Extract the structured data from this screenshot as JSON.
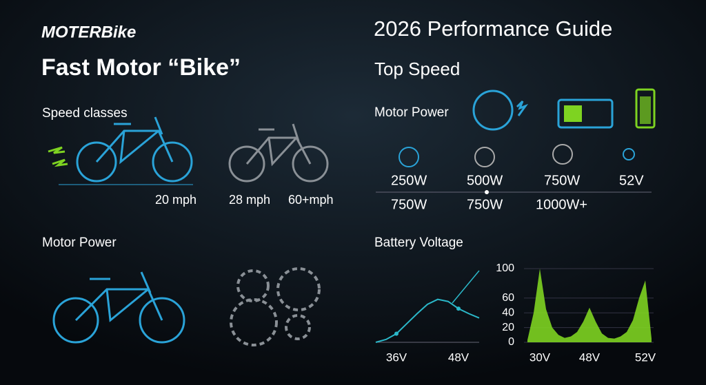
{
  "header": {
    "brand": "MOTERBike",
    "title": "Fast Motor “Bike”",
    "guide_title": "2026 Performance Guide"
  },
  "speed_classes": {
    "label": "Speed classes",
    "speeds": [
      "20 mph",
      "28 mph",
      "60+mph"
    ]
  },
  "motor_power_left": {
    "label": "Motor Power"
  },
  "top_speed": {
    "label": "Top Speed",
    "motor_power_label": "Motor Power",
    "row1": [
      "250W",
      "500W",
      "750W",
      "52V"
    ],
    "row2": [
      "750W",
      "750W",
      "1000W+"
    ]
  },
  "battery": {
    "label": "Battery Voltage",
    "curve": {
      "type": "line",
      "categories": [
        null,
        null,
        "36V",
        null,
        null,
        null,
        null,
        null,
        "48V",
        null,
        null
      ],
      "values": [
        0,
        4,
        12,
        26,
        40,
        53,
        60,
        57,
        47,
        40,
        34
      ],
      "color": "#2bb8c9"
    },
    "area": {
      "type": "area",
      "categories": [
        null,
        null,
        "30V",
        null,
        null,
        null,
        null,
        null,
        null,
        null,
        "48V",
        null,
        null,
        null,
        null,
        null,
        null,
        null,
        null,
        "52V",
        null
      ],
      "values": [
        3,
        40,
        100,
        45,
        20,
        10,
        6,
        8,
        14,
        28,
        47,
        28,
        12,
        6,
        5,
        8,
        14,
        30,
        60,
        84,
        5
      ],
      "ylim": [
        0,
        100
      ],
      "yticks": [
        0,
        20,
        40,
        60,
        100
      ],
      "grid": true,
      "color": "#7ed321"
    }
  }
}
